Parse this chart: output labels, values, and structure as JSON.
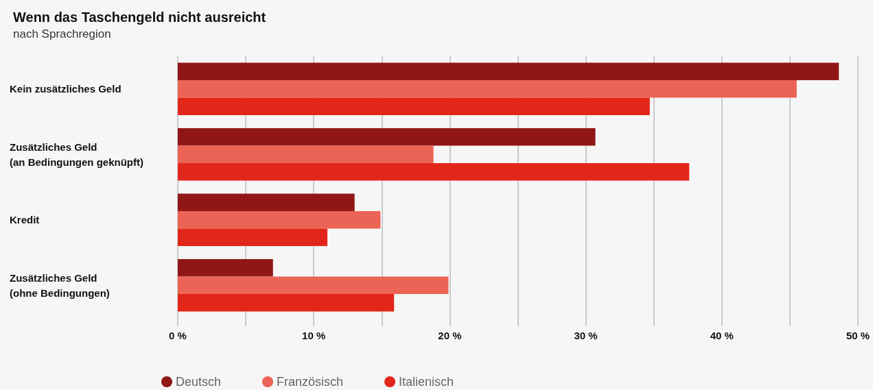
{
  "chart_data": {
    "type": "bar",
    "orientation": "horizontal",
    "title": "Wenn das Taschengeld nicht ausreicht",
    "subtitle": "nach Sprachregion",
    "categories": [
      "Kein zusätzliches Geld",
      "Zusätzliches Geld\n(an Bedingungen geknüpft)",
      "Kredit",
      "Zusätzliches Geld\n(ohne Bedingungen)"
    ],
    "series": [
      {
        "name": "Deutsch",
        "color": "#911716",
        "values": [
          48.6,
          30.7,
          13.0,
          7.0
        ]
      },
      {
        "name": "Französisch",
        "color": "#ec6455",
        "values": [
          45.5,
          18.8,
          14.9,
          19.9
        ]
      },
      {
        "name": "Italienisch",
        "color": "#e3261a",
        "values": [
          34.7,
          37.6,
          11.0,
          15.9
        ]
      }
    ],
    "xlim": [
      0,
      50
    ],
    "xticks": [
      {
        "value": 0,
        "label": "0 %"
      },
      {
        "value": 5,
        "label": null
      },
      {
        "value": 10,
        "label": "10 %"
      },
      {
        "value": 15,
        "label": null
      },
      {
        "value": 20,
        "label": "20 %"
      },
      {
        "value": 25,
        "label": null
      },
      {
        "value": 30,
        "label": "30 %"
      },
      {
        "value": 35,
        "label": null
      },
      {
        "value": 40,
        "label": "40 %"
      },
      {
        "value": 45,
        "label": null
      },
      {
        "value": 50,
        "label": "50 %"
      }
    ],
    "grid": "x",
    "legend": "bottom left"
  }
}
